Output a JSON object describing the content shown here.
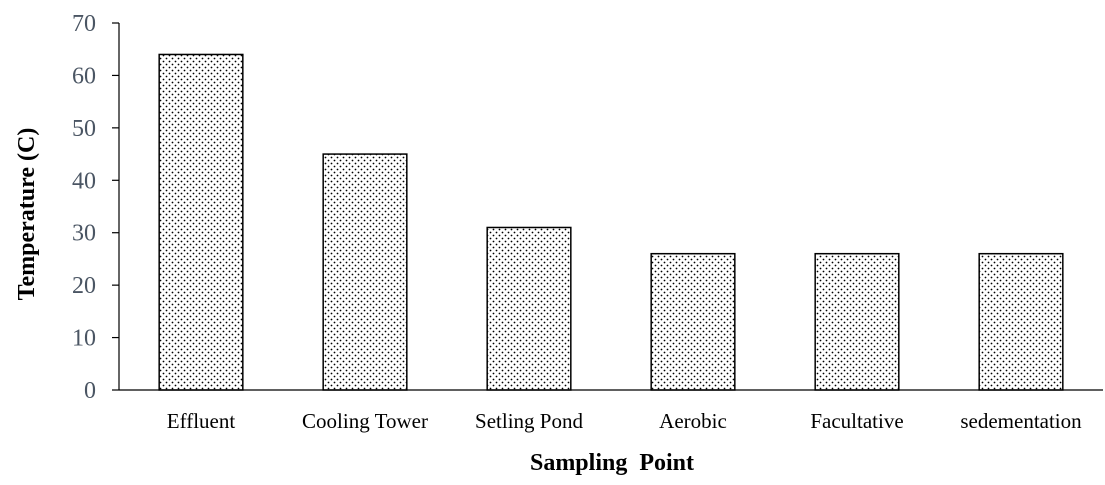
{
  "chart_data": {
    "type": "bar",
    "title": "",
    "xlabel": "Sampling  Point",
    "ylabel": "Temperature (C)",
    "categories": [
      "Effluent",
      "Cooling Tower",
      "Setling Pond",
      "Aerobic",
      "Facultative",
      "sedementation"
    ],
    "values": [
      64,
      45,
      31,
      26,
      26,
      26
    ],
    "ylim": [
      0,
      70
    ],
    "yticks": [
      "0",
      "10",
      "20",
      "30",
      "40",
      "50",
      "60",
      "70"
    ],
    "grid": false,
    "legend": "none",
    "bar_fill": "dotted",
    "colors": {
      "bar_border": "#000000",
      "bar_dots": "#000000",
      "axis": "#000000",
      "tick_text": "#4a5563"
    }
  }
}
